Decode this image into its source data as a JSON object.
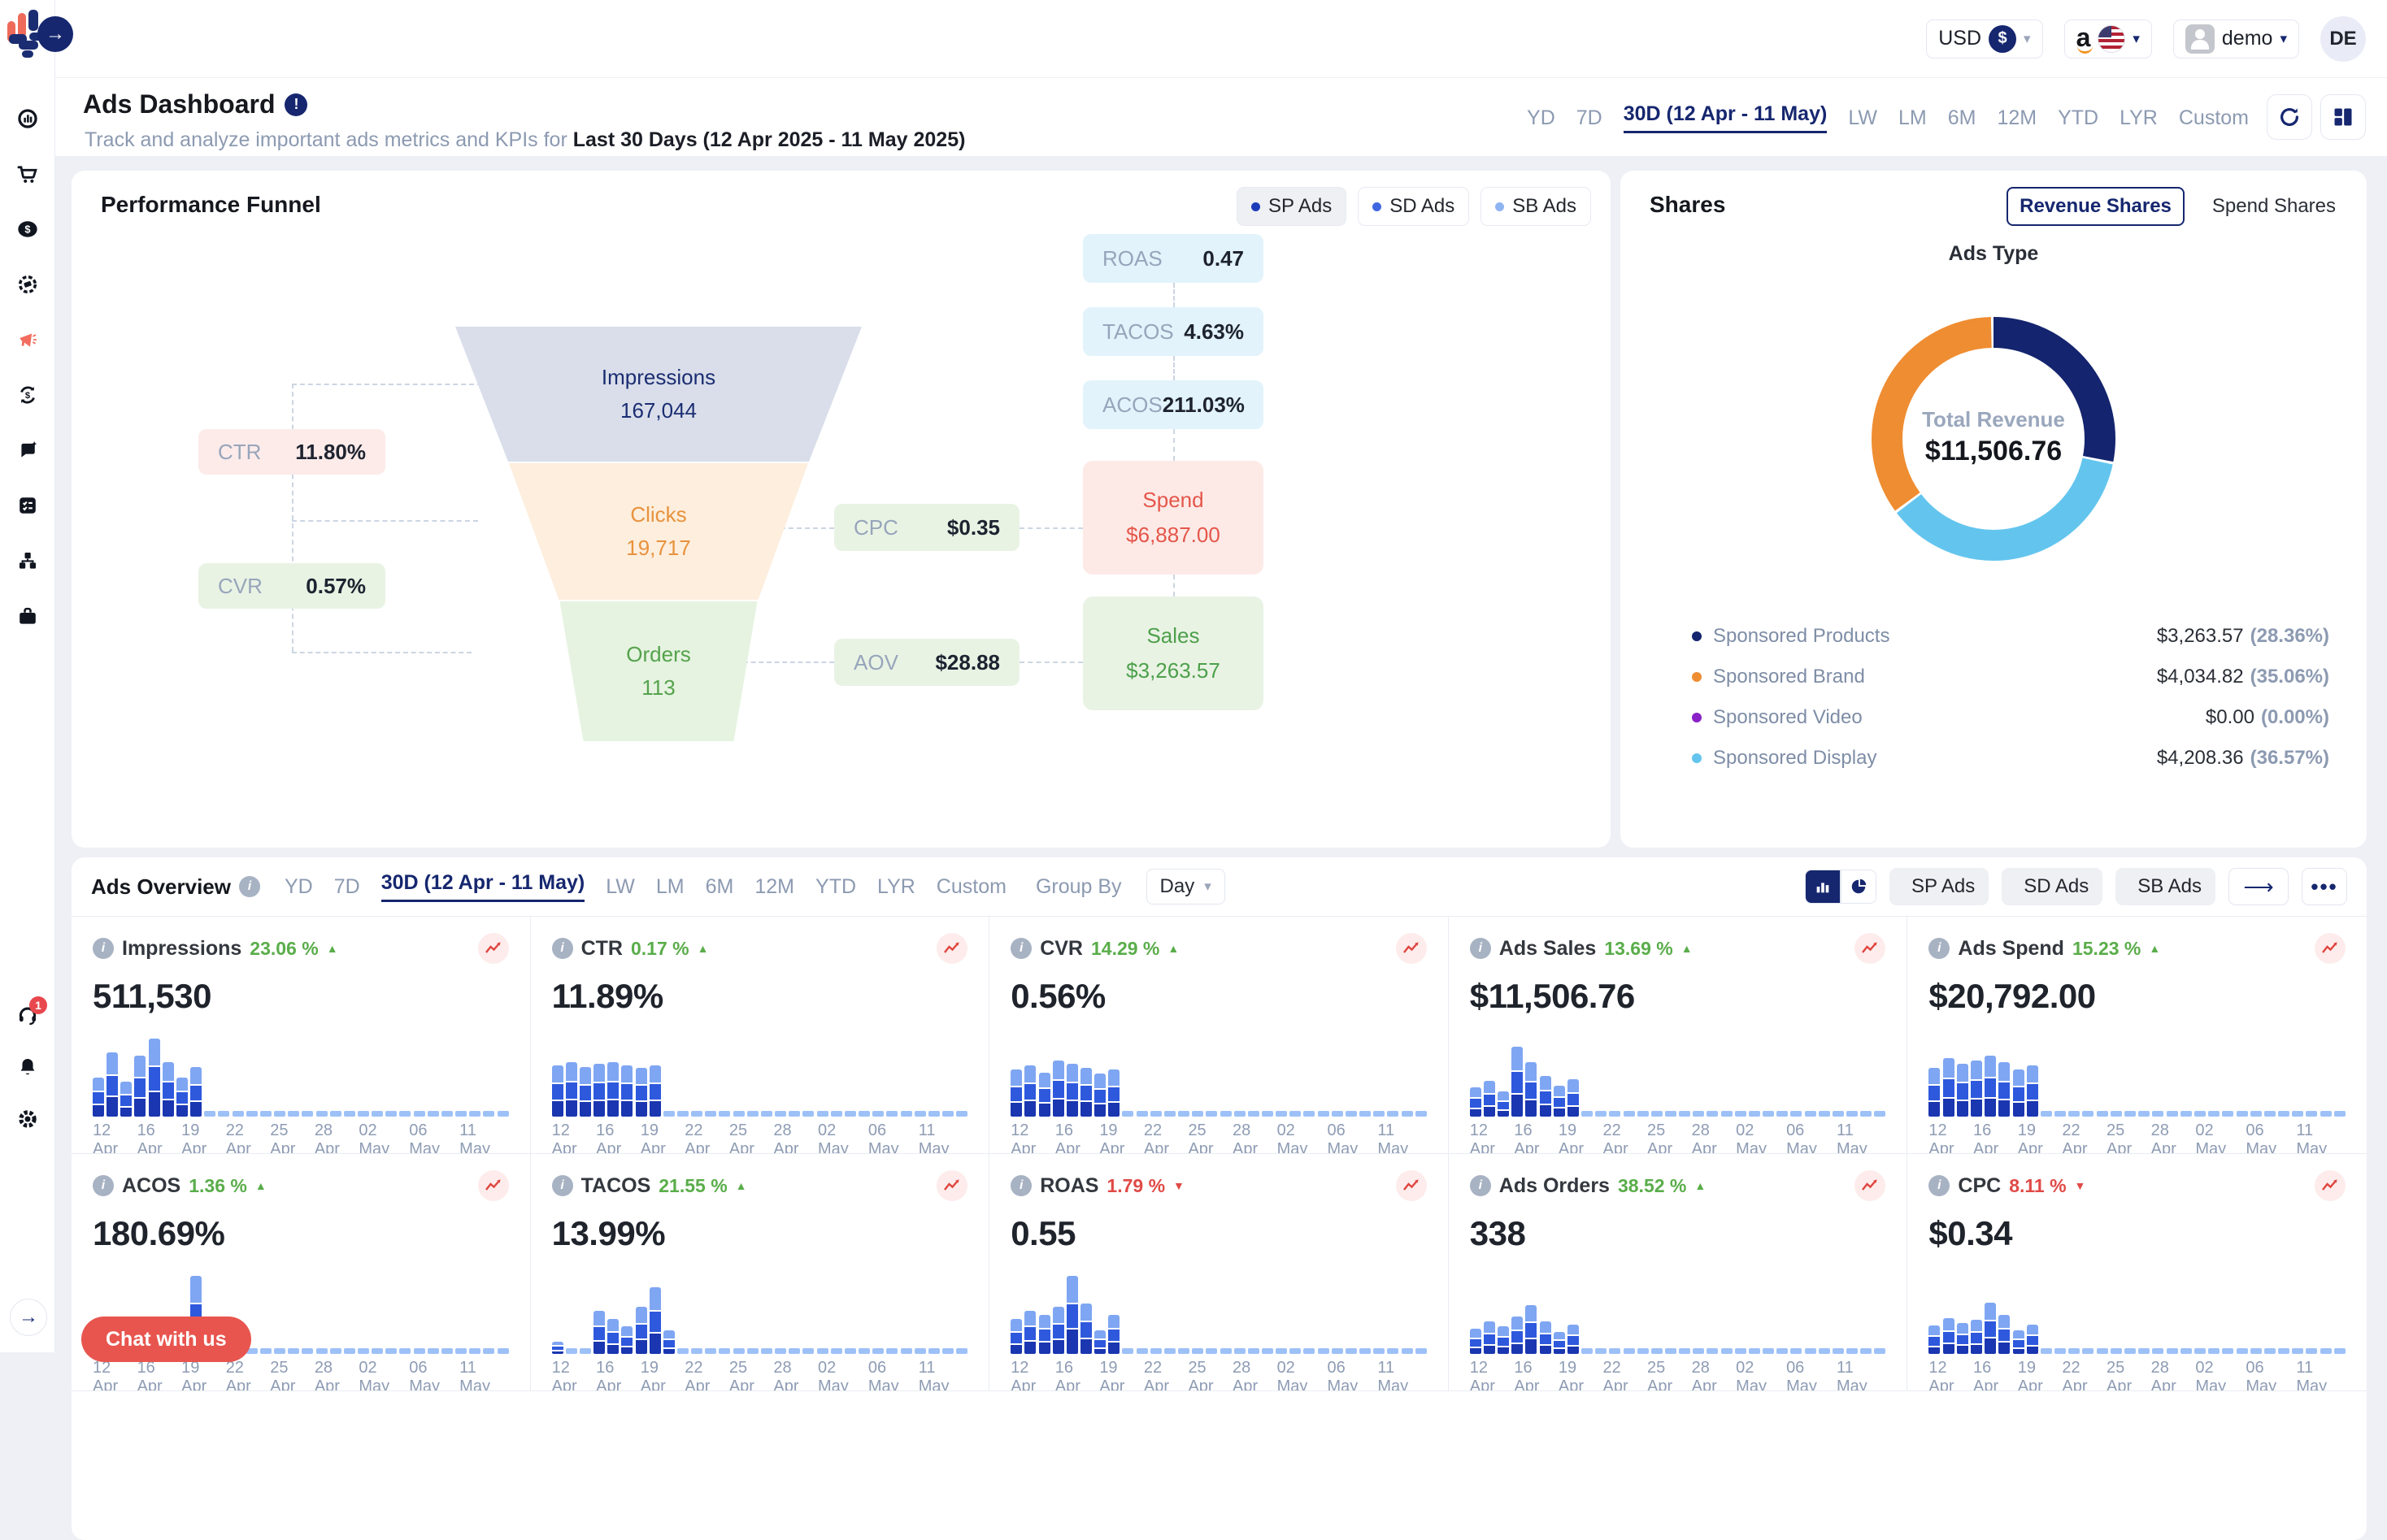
{
  "topbar": {
    "currency": {
      "code": "USD",
      "symbol": "$"
    },
    "account": {
      "name": "demo"
    },
    "avatar": "DE"
  },
  "sidebar": {
    "items": [
      {
        "icon": "analytics-icon"
      },
      {
        "icon": "cart-icon"
      },
      {
        "icon": "dollar-icon"
      },
      {
        "icon": "pricing-gear-icon"
      },
      {
        "icon": "megaphone-icon",
        "active": true
      },
      {
        "icon": "refund-sync-icon"
      },
      {
        "icon": "reviews-chat-icon"
      },
      {
        "icon": "checklist-icon"
      },
      {
        "icon": "inventory-boxes-icon"
      },
      {
        "icon": "briefcase-icon"
      }
    ],
    "bottom": [
      {
        "icon": "headset-icon",
        "badge": "1"
      },
      {
        "icon": "bell-icon"
      },
      {
        "icon": "gear-icon"
      }
    ]
  },
  "header": {
    "title": "Ads Dashboard",
    "subtitle_prefix": "Track and analyze important ads metrics and KPIs for ",
    "subtitle_bold": "Last 30 Days (12 Apr 2025 - 11 May 2025)",
    "range_tabs": [
      "YD",
      "7D",
      "30D (12 Apr - 11 May)",
      "LW",
      "LM",
      "6M",
      "12M",
      "YTD",
      "LYR",
      "Custom"
    ],
    "active_tab": "30D (12 Apr - 11 May)"
  },
  "funnel": {
    "title": "Performance Funnel",
    "chips": [
      {
        "label": "SP Ads",
        "dot": "#1d3bb8",
        "selected": true
      },
      {
        "label": "SD Ads",
        "dot": "#3f68e0",
        "selected": false
      },
      {
        "label": "SB Ads",
        "dot": "#8fb4f2",
        "selected": false
      }
    ],
    "stages": [
      {
        "label": "Impressions",
        "value": "167,044"
      },
      {
        "label": "Clicks",
        "value": "19,717"
      },
      {
        "label": "Orders",
        "value": "113"
      }
    ],
    "metrics": {
      "ctr": {
        "label": "CTR",
        "value": "11.80%"
      },
      "cvr": {
        "label": "CVR",
        "value": "0.57%"
      },
      "cpc": {
        "label": "CPC",
        "value": "$0.35"
      },
      "aov": {
        "label": "AOV",
        "value": "$28.88"
      },
      "roas": {
        "label": "ROAS",
        "value": "0.47"
      },
      "tacos": {
        "label": "TACOS",
        "value": "4.63%"
      },
      "acos": {
        "label": "ACOS",
        "value": "211.03%"
      }
    },
    "spend": {
      "label": "Spend",
      "value": "$6,887.00"
    },
    "sales": {
      "label": "Sales",
      "value": "$3,263.57"
    }
  },
  "shares": {
    "title": "Shares",
    "toggles": [
      {
        "label": "Revenue Shares",
        "selected": true
      },
      {
        "label": "Spend Shares",
        "selected": false
      }
    ],
    "chart_title": "Ads Type",
    "center_label": "Total Revenue",
    "center_value": "$11,506.76",
    "legend": [
      {
        "name": "Sponsored Products",
        "value": "$3,263.57",
        "pct": "(28.36%)",
        "color": "#14246e",
        "share": 28.36
      },
      {
        "name": "Sponsored Brand",
        "value": "$4,034.82",
        "pct": "(35.06%)",
        "color": "#ef8d32",
        "share": 35.06
      },
      {
        "name": "Sponsored Video",
        "value": "$0.00",
        "pct": "(0.00%)",
        "color": "#8a22c7",
        "share": 0
      },
      {
        "name": "Sponsored Display",
        "value": "$4,208.36",
        "pct": "(36.57%)",
        "color": "#63c5ee",
        "share": 36.57
      }
    ],
    "donut_draw_order": [
      0,
      3,
      1
    ]
  },
  "overview": {
    "title": "Ads Overview",
    "range_tabs": [
      "YD",
      "7D",
      "30D (12 Apr - 11 May)",
      "LW",
      "LM",
      "6M",
      "12M",
      "YTD",
      "LYR",
      "Custom"
    ],
    "active_tab": "30D (12 Apr - 11 May)",
    "group_by_label": "Group By",
    "group_by_value": "Day",
    "chips": [
      {
        "label": "SP Ads",
        "dot": "#1d3bb8"
      },
      {
        "label": "SD Ads",
        "dot": "#3f68e0"
      },
      {
        "label": "SB Ads",
        "dot": "#8fb4f2"
      }
    ],
    "slots": 30,
    "dates": [
      "12 Apr",
      "16 Apr",
      "19 Apr",
      "22 Apr",
      "25 Apr",
      "28 Apr",
      "02 May",
      "06 May",
      "11 May"
    ],
    "cards": [
      {
        "name": "Impressions",
        "delta": "23.06 %",
        "dir": "up",
        "value": "511,530",
        "bars": [
          0.5,
          0.82,
          0.45,
          0.78,
          1.0,
          0.7,
          0.5,
          0.64
        ]
      },
      {
        "name": "CTR",
        "delta": "0.17 %",
        "dir": "up",
        "value": "11.89%",
        "bars": [
          0.66,
          0.7,
          0.64,
          0.68,
          0.7,
          0.66,
          0.62,
          0.66
        ]
      },
      {
        "name": "CVR",
        "delta": "14.29 %",
        "dir": "up",
        "value": "0.56%",
        "bars": [
          0.6,
          0.66,
          0.56,
          0.72,
          0.68,
          0.62,
          0.55,
          0.6
        ]
      },
      {
        "name": "Ads Sales",
        "delta": "13.69 %",
        "dir": "up",
        "value": "$11,506.76",
        "bars": [
          0.38,
          0.46,
          0.32,
          0.9,
          0.7,
          0.52,
          0.4,
          0.48
        ]
      },
      {
        "name": "Ads Spend",
        "delta": "15.23 %",
        "dir": "up",
        "value": "$20,792.00",
        "bars": [
          0.62,
          0.75,
          0.68,
          0.72,
          0.78,
          0.7,
          0.6,
          0.66
        ]
      },
      {
        "name": "ACOS",
        "delta": "1.36 %",
        "dir": "up",
        "value": "180.69%",
        "bars": [
          0.14,
          0.1,
          0.16,
          0.16,
          0.07,
          0.1,
          0.07,
          1.0,
          0.12
        ]
      },
      {
        "name": "TACOS",
        "delta": "21.55 %",
        "dir": "up",
        "value": "13.99%",
        "bars": [
          0.12,
          0,
          0,
          0.55,
          0.45,
          0.35,
          0.6,
          0.85,
          0.3
        ]
      },
      {
        "name": "ROAS",
        "delta": "1.79 %",
        "dir": "down",
        "value": "0.55",
        "bars": [
          0.45,
          0.55,
          0.5,
          0.6,
          1.0,
          0.65,
          0.3,
          0.5
        ]
      },
      {
        "name": "Ads Orders",
        "delta": "38.52 %",
        "dir": "up",
        "value": "338",
        "bars": [
          0.32,
          0.42,
          0.35,
          0.48,
          0.62,
          0.42,
          0.28,
          0.38
        ]
      },
      {
        "name": "CPC",
        "delta": "8.11 %",
        "dir": "down",
        "value": "$0.34",
        "bars": [
          0.36,
          0.46,
          0.4,
          0.44,
          0.66,
          0.5,
          0.3,
          0.38
        ]
      }
    ]
  },
  "chat_button": "Chat with us",
  "colors": {
    "bar_light": "#7fa6f2",
    "bar_mid": "#2e59dd",
    "bar_dark": "#1a36b0",
    "bar_flat": "#9dc1f7",
    "accent_navy": "#16276f",
    "active_red": "#f26d5f",
    "delta_up": "#5aad4a",
    "delta_down": "#e04a46"
  }
}
